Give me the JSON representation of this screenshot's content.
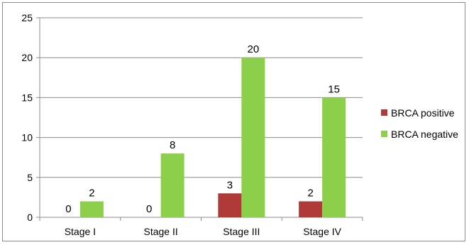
{
  "chart_data": {
    "type": "bar",
    "title": "",
    "xlabel": "",
    "ylabel": "",
    "categories": [
      "Stage I",
      "Stage II",
      "Stage III",
      "Stage IV"
    ],
    "series": [
      {
        "name": "BRCA positive",
        "values": [
          0,
          0,
          3,
          2
        ],
        "color": "#b03a38"
      },
      {
        "name": "BRCA negative",
        "values": [
          2,
          8,
          20,
          15
        ],
        "color": "#8ccf4a"
      }
    ],
    "ylim": [
      0,
      25
    ],
    "yticks": [
      0,
      5,
      10,
      15,
      20,
      25
    ],
    "grid": true,
    "legend_position": "right",
    "data_labels": true
  }
}
